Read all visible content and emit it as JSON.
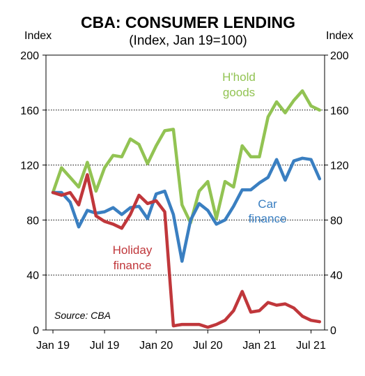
{
  "chart_data": {
    "type": "line",
    "title": "CBA: CONSUMER LENDING",
    "subtitle": "(Index, Jan 19=100)",
    "ylabel_left": "Index",
    "ylabel_right": "Index",
    "source": "Source: CBA",
    "ylim": [
      0,
      200
    ],
    "y_ticks": [
      0,
      40,
      80,
      120,
      160,
      200
    ],
    "x_tick_labels": [
      "Jan 19",
      "Jul 19",
      "Jan 20",
      "Jul 20",
      "Jan 21",
      "Jul 21"
    ],
    "grid": "horizontal dotted",
    "x": [
      "Jan 19",
      "Feb 19",
      "Mar 19",
      "Apr 19",
      "May 19",
      "Jun 19",
      "Jul 19",
      "Aug 19",
      "Sep 19",
      "Oct 19",
      "Nov 19",
      "Dec 19",
      "Jan 20",
      "Feb 20",
      "Mar 20",
      "Apr 20",
      "May 20",
      "Jun 20",
      "Jul 20",
      "Aug 20",
      "Sep 20",
      "Oct 20",
      "Nov 20",
      "Dec 20",
      "Jan 21",
      "Feb 21",
      "Mar 21",
      "Apr 21",
      "May 21",
      "Jun 21",
      "Jul 21",
      "Aug 21"
    ],
    "series": [
      {
        "name": "H'hold goods",
        "label_lines": [
          "H'hold",
          "goods"
        ],
        "color": "#92c353",
        "values": [
          100,
          118,
          111,
          104,
          122,
          101,
          118,
          127,
          126,
          139,
          135,
          121,
          134,
          145,
          146,
          91,
          78,
          101,
          108,
          81,
          108,
          104,
          134,
          126,
          126,
          155,
          166,
          158,
          167,
          174,
          163,
          160
        ]
      },
      {
        "name": "Car finance",
        "label_lines": [
          "Car",
          "finance"
        ],
        "color": "#3a7fc1",
        "values": [
          100,
          100,
          93,
          75,
          87,
          85,
          86,
          89,
          84,
          89,
          90,
          81,
          99,
          101,
          84,
          50,
          80,
          92,
          87,
          77,
          80,
          90,
          102,
          102,
          107,
          111,
          124,
          109,
          123,
          125,
          124,
          110
        ]
      },
      {
        "name": "Holiday finance",
        "label_lines": [
          "Holiday",
          "finance"
        ],
        "color": "#c0373b",
        "values": [
          100,
          98,
          100,
          91,
          113,
          83,
          79,
          77,
          74,
          84,
          98,
          92,
          94,
          86,
          3,
          4,
          4,
          4,
          2,
          4,
          7,
          14,
          28,
          13,
          14,
          20,
          18,
          19,
          16,
          10,
          7,
          6
        ]
      }
    ]
  }
}
